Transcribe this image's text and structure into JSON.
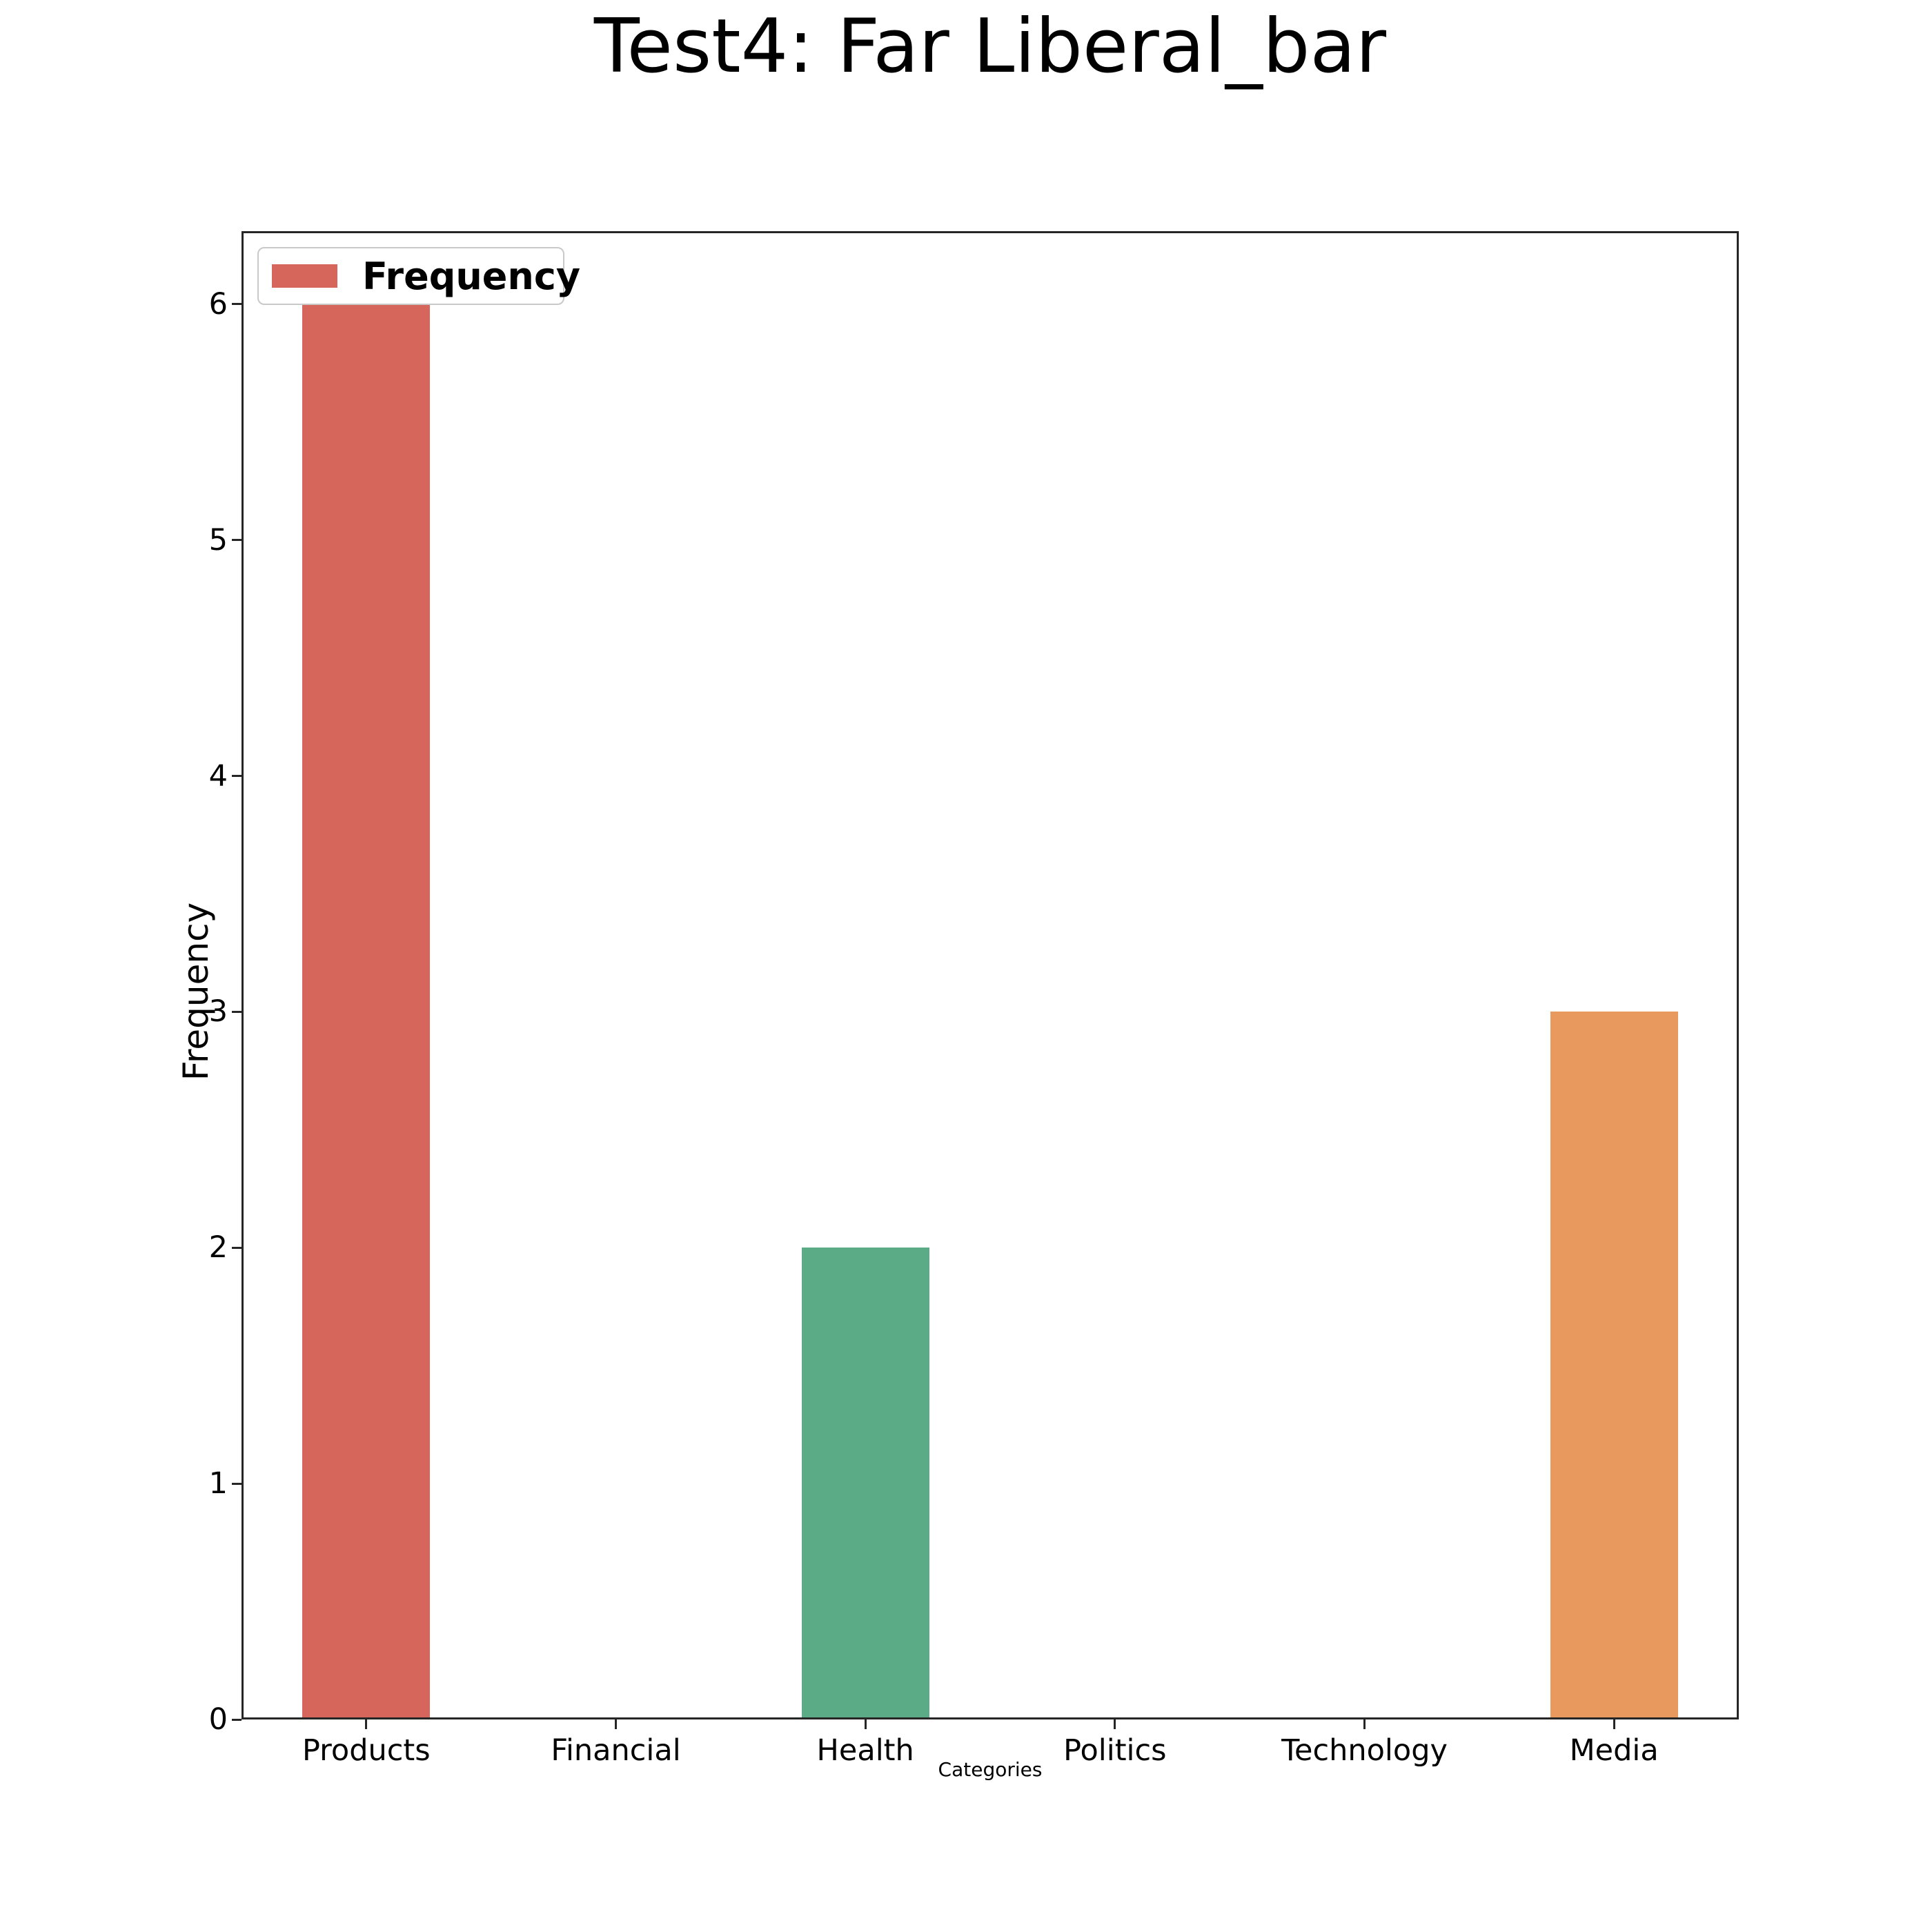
{
  "chart_data": {
    "type": "bar",
    "title": "Test4: Far Liberal_bar",
    "xlabel": "Categories",
    "ylabel": "Frequency",
    "categories": [
      "Products",
      "Financial",
      "Health",
      "Politics",
      "Technology",
      "Media"
    ],
    "values": [
      6,
      0,
      2,
      0,
      0,
      3
    ],
    "bar_colors": [
      "#d6655c",
      null,
      "#5cab87",
      null,
      null,
      "#e8995e"
    ],
    "yticks": [
      0,
      1,
      2,
      3,
      4,
      5,
      6
    ],
    "ylim": [
      0,
      6.31
    ],
    "grid": false,
    "legend": {
      "label": "Frequency",
      "swatch_color": "#d6655c",
      "position": "upper left"
    },
    "axis_color": "#262626",
    "text_color": "#000000",
    "background_color": "#ffffff"
  }
}
